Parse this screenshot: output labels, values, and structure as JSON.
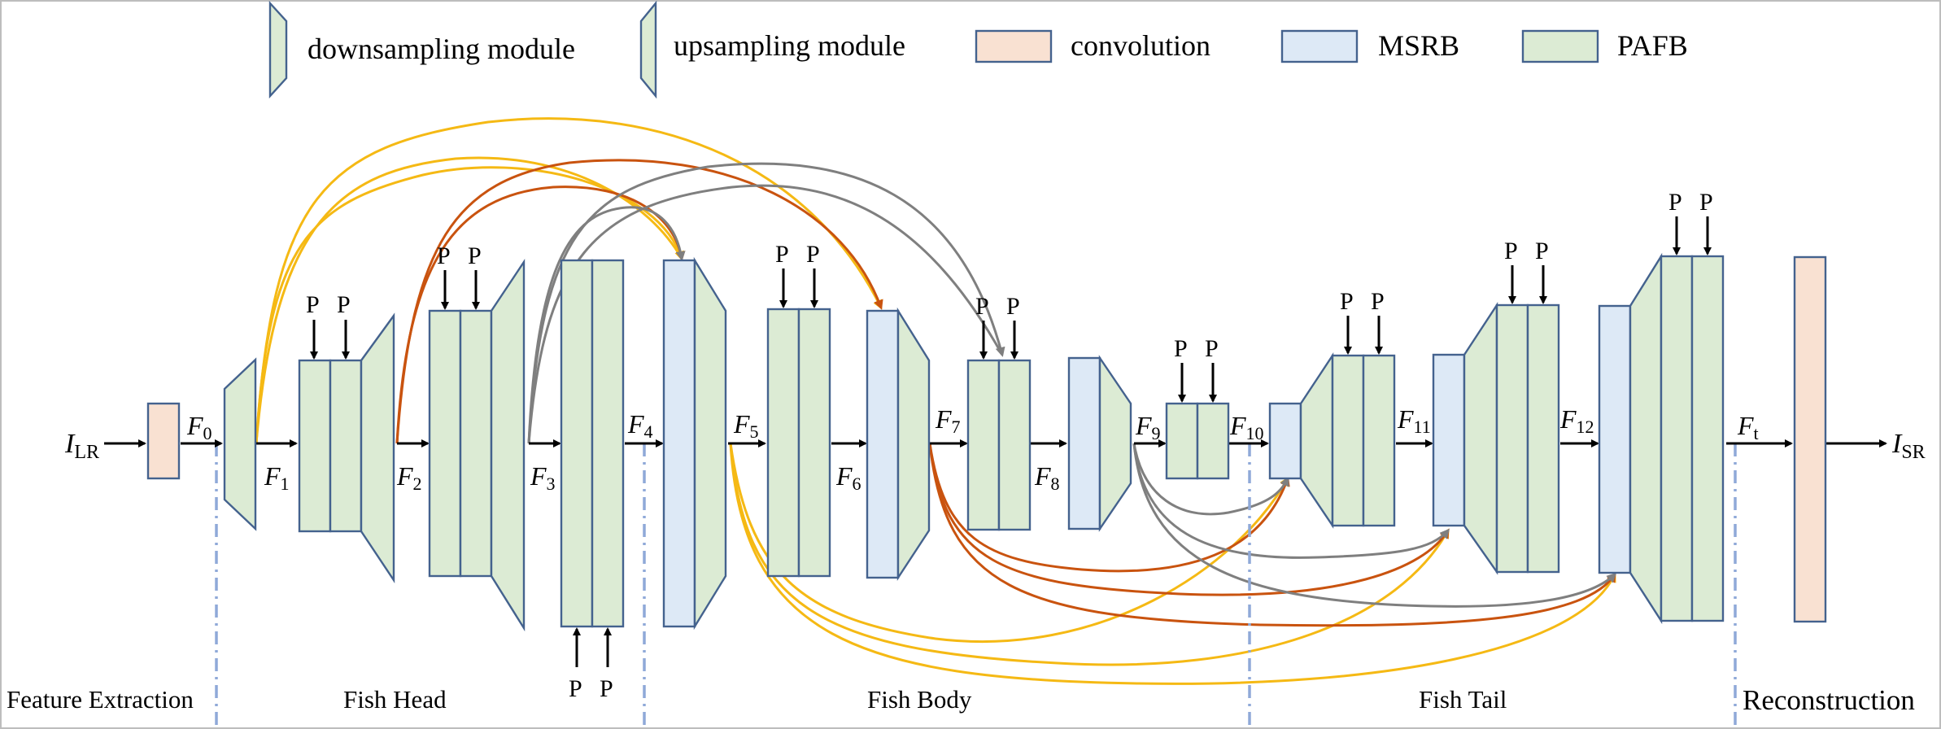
{
  "legend": {
    "downsampling": "downsampling module",
    "upsampling": "upsampling module",
    "convolution": "convolution",
    "msrb": "MSRB",
    "pafb": "PAFB"
  },
  "colors": {
    "green": "#dcebd4",
    "blue": "#dde9f6",
    "conv": "#f9e1d2",
    "yellow_skip": "#f5b914",
    "orange_skip": "#c9530f",
    "gray_skip": "#7f7f7f"
  },
  "input": {
    "main": "I",
    "sub": "LR"
  },
  "output": {
    "main": "I",
    "sub": "SR"
  },
  "features": {
    "f0": "0",
    "f1": "1",
    "f2": "2",
    "f3": "3",
    "f4": "4",
    "f5": "5",
    "f6": "6",
    "f7": "7",
    "f8": "8",
    "f9": "9",
    "f10": "10",
    "f11": "11",
    "f12": "12",
    "ft": "t",
    "letter": "F"
  },
  "p_label": "P",
  "stages": {
    "feature_extraction": "Feature Extraction",
    "fish_head": "Fish Head",
    "fish_body": "Fish Body",
    "fish_tail": "Fish Tail",
    "reconstruction": "Reconstruction"
  }
}
